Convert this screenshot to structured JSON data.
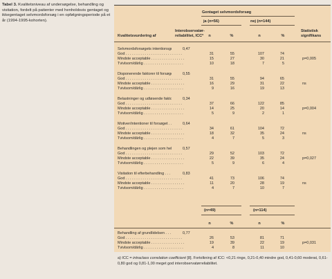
{
  "caption": {
    "label": "Tabel 3.",
    "text": "Kvalitetsniveau af undersøgelse, behandling og visitation, fordelt på patienter med henholdsvis gentaget og ikkegentaget selvmordsforsøg i en opfølgningsperiode på et år (1994-1995-kohorten)."
  },
  "header": {
    "group_title": "Gentaget selvmordsforsøg",
    "col_quality": "Kvalitetsvurdering af",
    "col_reliability_1": "Interobservatør-",
    "col_reliability_2": "reliabilitet, ICCª",
    "yes_label": "ja (n=56)",
    "no_label": "nej (n=144)",
    "stat_1": "Statistisk",
    "stat_2": "signifikans",
    "n": "n",
    "pct": "%"
  },
  "sections": [
    {
      "title": "Selvmordsforsøgets intentionsgrad . . .",
      "icc": "0,47",
      "rows": [
        {
          "label": "God . . . . . . . . . . . . . . . . . . . . . . . . . . .",
          "yn": "31",
          "yp": "55",
          "nn": "107",
          "np": "74",
          "sig": ""
        },
        {
          "label": "Mindste acceptable . . . . . . . . . . . . . . . .",
          "yn": "15",
          "yp": "27",
          "nn": "30",
          "np": "21",
          "sig": "p=0,005"
        },
        {
          "label": "Tvivlsom/dårlig . . . . . . . . . . . . . . . . . . .",
          "yn": "10",
          "yp": "18",
          "nn": "7",
          "np": "5",
          "sig": ""
        }
      ]
    },
    {
      "title": "Disponerende faktorer til forsøget . . . . .",
      "icc": "0,55",
      "rows": [
        {
          "label": "God . . . . . . . . . . . . . . . . . . . . . . . . . . .",
          "yn": "31",
          "yp": "55",
          "nn": "94",
          "np": "65",
          "sig": ""
        },
        {
          "label": "Mindste acceptable . . . . . . . . . . . . . . . .",
          "yn": "16",
          "yp": "29",
          "nn": "31",
          "np": "22",
          "sig": "ns"
        },
        {
          "label": "Tvivlsom/dårlig . . . . . . . . . . . . . . . . . . .",
          "yn": "9",
          "yp": "16",
          "nn": "19",
          "np": "13",
          "sig": ""
        }
      ]
    },
    {
      "title": "Belastninger og udløsende faktorer . . . .",
      "icc": "0,34",
      "rows": [
        {
          "label": "God . . . . . . . . . . . . . . . . . . . . . . . . . . .",
          "yn": "37",
          "yp": "66",
          "nn": "122",
          "np": "85",
          "sig": ""
        },
        {
          "label": "Mindste acceptable . . . . . . . . . . . . . . . .",
          "yn": "14",
          "yp": "25",
          "nn": "20",
          "np": "14",
          "sig": "p=0,004"
        },
        {
          "label": "Tvivlsom/dårlig . . . . . . . . . . . . . . . . . . .",
          "yn": "5",
          "yp": "9",
          "nn": "2",
          "np": "1",
          "sig": ""
        }
      ]
    },
    {
      "title": "Motiver/intentioner til forsøget . . . . . . . .",
      "icc": "0,64",
      "rows": [
        {
          "label": "God . . . . . . . . . . . . . . . . . . . . . . . . . . .",
          "yn": "34",
          "yp": "61",
          "nn": "104",
          "np": "72",
          "sig": ""
        },
        {
          "label": "Mindste acceptable . . . . . . . . . . . . . . . .",
          "yn": "18",
          "yp": "32",
          "nn": "35",
          "np": "24",
          "sig": "ns"
        },
        {
          "label": "Tvivlsom/dårlig . . . . . . . . . . . . . . . . . . .",
          "yn": "4",
          "yp": "7",
          "nn": "5",
          "np": "3",
          "sig": ""
        }
      ]
    },
    {
      "title": "Behandlingen og plejen som helhed . . . .",
      "icc": "0,57",
      "rows": [
        {
          "label": "God . . . . . . . . . . . . . . . . . . . . . . . . . . .",
          "yn": "29",
          "yp": "52",
          "nn": "103",
          "np": "72",
          "sig": ""
        },
        {
          "label": "Mindste acceptable . . . . . . . . . . . . . . . .",
          "yn": "22",
          "yp": "39",
          "nn": "35",
          "np": "24",
          "sig": "p=0,027"
        },
        {
          "label": "Tvivlsom/dårlig . . . . . . . . . . . . . . . . . . .",
          "yn": "5",
          "yp": "9",
          "nn": "6",
          "np": "4",
          "sig": ""
        }
      ]
    },
    {
      "title": "Visitation til efterbehandling . . . . . . . . . .",
      "icc": "0,83",
      "rows": [
        {
          "label": "God . . . . . . . . . . . . . . . . . . . . . . . . . . .",
          "yn": "41",
          "yp": "73",
          "nn": "106",
          "np": "74",
          "sig": ""
        },
        {
          "label": "Mindste acceptable . . . . . . . . . . . . . . . .",
          "yn": "11",
          "yp": "20",
          "nn": "28",
          "np": "19",
          "sig": "ns"
        },
        {
          "label": "Tvivlsom/dårlig . . . . . . . . . . . . . . . . . . .",
          "yn": "4",
          "yp": "7",
          "nn": "10",
          "np": "7",
          "sig": ""
        }
      ]
    }
  ],
  "subheader": {
    "yes_label": "(n=49)",
    "no_label": "(n=114)",
    "n": "n",
    "pct": "%"
  },
  "last_section": {
    "title": "Behandling af grundlidelsen . . . . . . . . . .",
    "icc": "0,77",
    "rows": [
      {
        "label": "God . . . . . . . . . . . . . . . . . . . . . . . . . . .",
        "yn": "26",
        "yp": "53",
        "nn": "81",
        "np": "71",
        "sig": ""
      },
      {
        "label": "Mindste acceptable . . . . . . . . . . . . . . . .",
        "yn": "19",
        "yp": "39",
        "nn": "22",
        "np": "19",
        "sig": "p=0,031"
      },
      {
        "label": "Tvivlsom/dårlig . . . . . . . . . . . . . . . . . . .",
        "yn": "4",
        "yp": "8",
        "nn": "11",
        "np": "10",
        "sig": ""
      }
    ]
  },
  "footnote": {
    "marker": "a)",
    "icc_label": "ICC =",
    "icc_term": "intraclass correlation coefficient",
    "text": "[8]. Fortolkning af ICC: <0,21 ringe, 0,21-0,40 mindre god, 0,41-0,60 moderat, 0,61-0,80 god og 0,81-1,00 meget god interobservatørreliabilitet."
  }
}
